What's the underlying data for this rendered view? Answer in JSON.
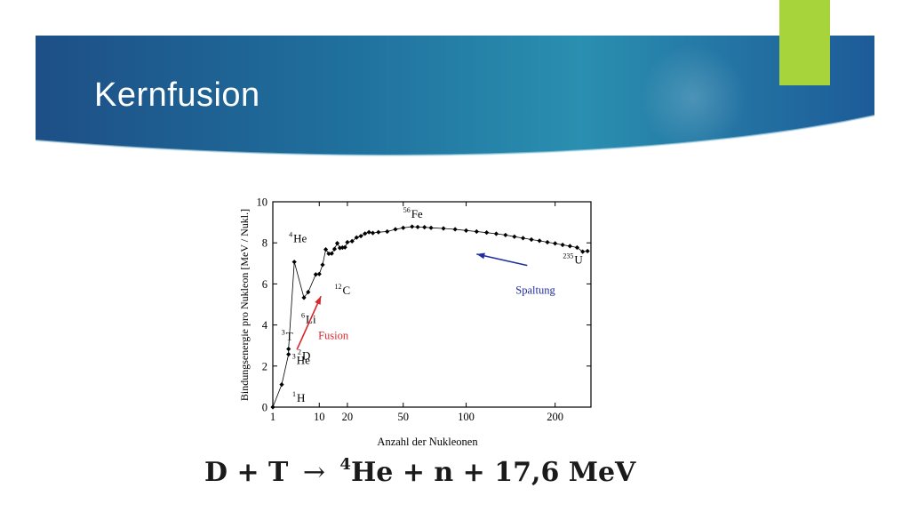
{
  "slide": {
    "title": "Kernfusion",
    "colors": {
      "banner_dark": "#1d4f86",
      "banner_mid": "#2a8fb0",
      "accent": "#a6d43a"
    }
  },
  "chart_data": {
    "type": "line",
    "xlabel": "Anzahl der Nukleonen",
    "ylabel": "Bindungsenergie pro Nukleon [MeV / Nukl.]",
    "x_scale": "sqrt",
    "xlim": [
      1,
      250
    ],
    "ylim": [
      0,
      10
    ],
    "x_ticks": [
      1,
      10,
      20,
      50,
      100,
      200
    ],
    "x_tick_labels": [
      "1",
      "10",
      "20",
      "50",
      "100",
      "200"
    ],
    "y_ticks": [
      0,
      2,
      4,
      6,
      8,
      10
    ],
    "y_tick_labels": [
      "0",
      "2",
      "4",
      "6",
      "8",
      "10"
    ],
    "series": [
      {
        "x": [
          1,
          2,
          3,
          3,
          4,
          6,
          7,
          9,
          10,
          11,
          12,
          13,
          14,
          15,
          16,
          17,
          18,
          19,
          20,
          22,
          24,
          26,
          28,
          30,
          32,
          35,
          40,
          45,
          50,
          56,
          60,
          65,
          70,
          80,
          90,
          100,
          110,
          120,
          130,
          140,
          150,
          160,
          170,
          180,
          190,
          200,
          210,
          220,
          230,
          238,
          245
        ],
        "y": [
          0,
          1.1,
          2.57,
          2.83,
          7.07,
          5.33,
          5.6,
          6.46,
          6.48,
          6.93,
          7.68,
          7.47,
          7.48,
          7.7,
          7.98,
          7.75,
          7.77,
          7.78,
          8.03,
          8.08,
          8.26,
          8.33,
          8.45,
          8.52,
          8.48,
          8.52,
          8.55,
          8.66,
          8.73,
          8.79,
          8.77,
          8.76,
          8.73,
          8.7,
          8.66,
          8.6,
          8.55,
          8.5,
          8.44,
          8.38,
          8.3,
          8.23,
          8.16,
          8.1,
          8.03,
          7.97,
          7.9,
          7.84,
          7.77,
          7.57,
          7.6
        ]
      }
    ],
    "annotations": [
      {
        "id": "h1",
        "mass": "1",
        "symbol": "H",
        "x": 1,
        "y": 0
      },
      {
        "id": "d2",
        "mass": "2",
        "symbol": "D",
        "x": 2,
        "y": 1.1
      },
      {
        "id": "t3",
        "mass": "3",
        "symbol": "T",
        "x": 3,
        "y": 2.83
      },
      {
        "id": "he3",
        "mass": "3",
        "symbol": "He",
        "x": 3,
        "y": 2.57
      },
      {
        "id": "he4",
        "mass": "4",
        "symbol": "He",
        "x": 4,
        "y": 7.07
      },
      {
        "id": "li6",
        "mass": "6",
        "symbol": "Li",
        "x": 6,
        "y": 4.6
      },
      {
        "id": "c12",
        "mass": "12",
        "symbol": "C",
        "x": 12,
        "y": 6.2
      },
      {
        "id": "fe56",
        "mass": "56",
        "symbol": "Fe",
        "x": 56,
        "y": 8.79
      },
      {
        "id": "u235",
        "mass": "235",
        "symbol": "U",
        "x": 235,
        "y": 7.6
      }
    ],
    "arrows": [
      {
        "id": "fusion",
        "label": "Fusion",
        "color": "#d8262b",
        "from": [
          4.5,
          2.8
        ],
        "to": [
          10.5,
          5.4
        ]
      },
      {
        "id": "spaltung",
        "label": "Spaltung",
        "color": "#1f2d9e",
        "from": [
          165,
          6.9
        ],
        "to": [
          110,
          7.45
        ]
      }
    ]
  },
  "equation": {
    "lhs": "D + T",
    "arrow": "→",
    "mass": "4",
    "product": "He + n + 17,6 MeV"
  }
}
